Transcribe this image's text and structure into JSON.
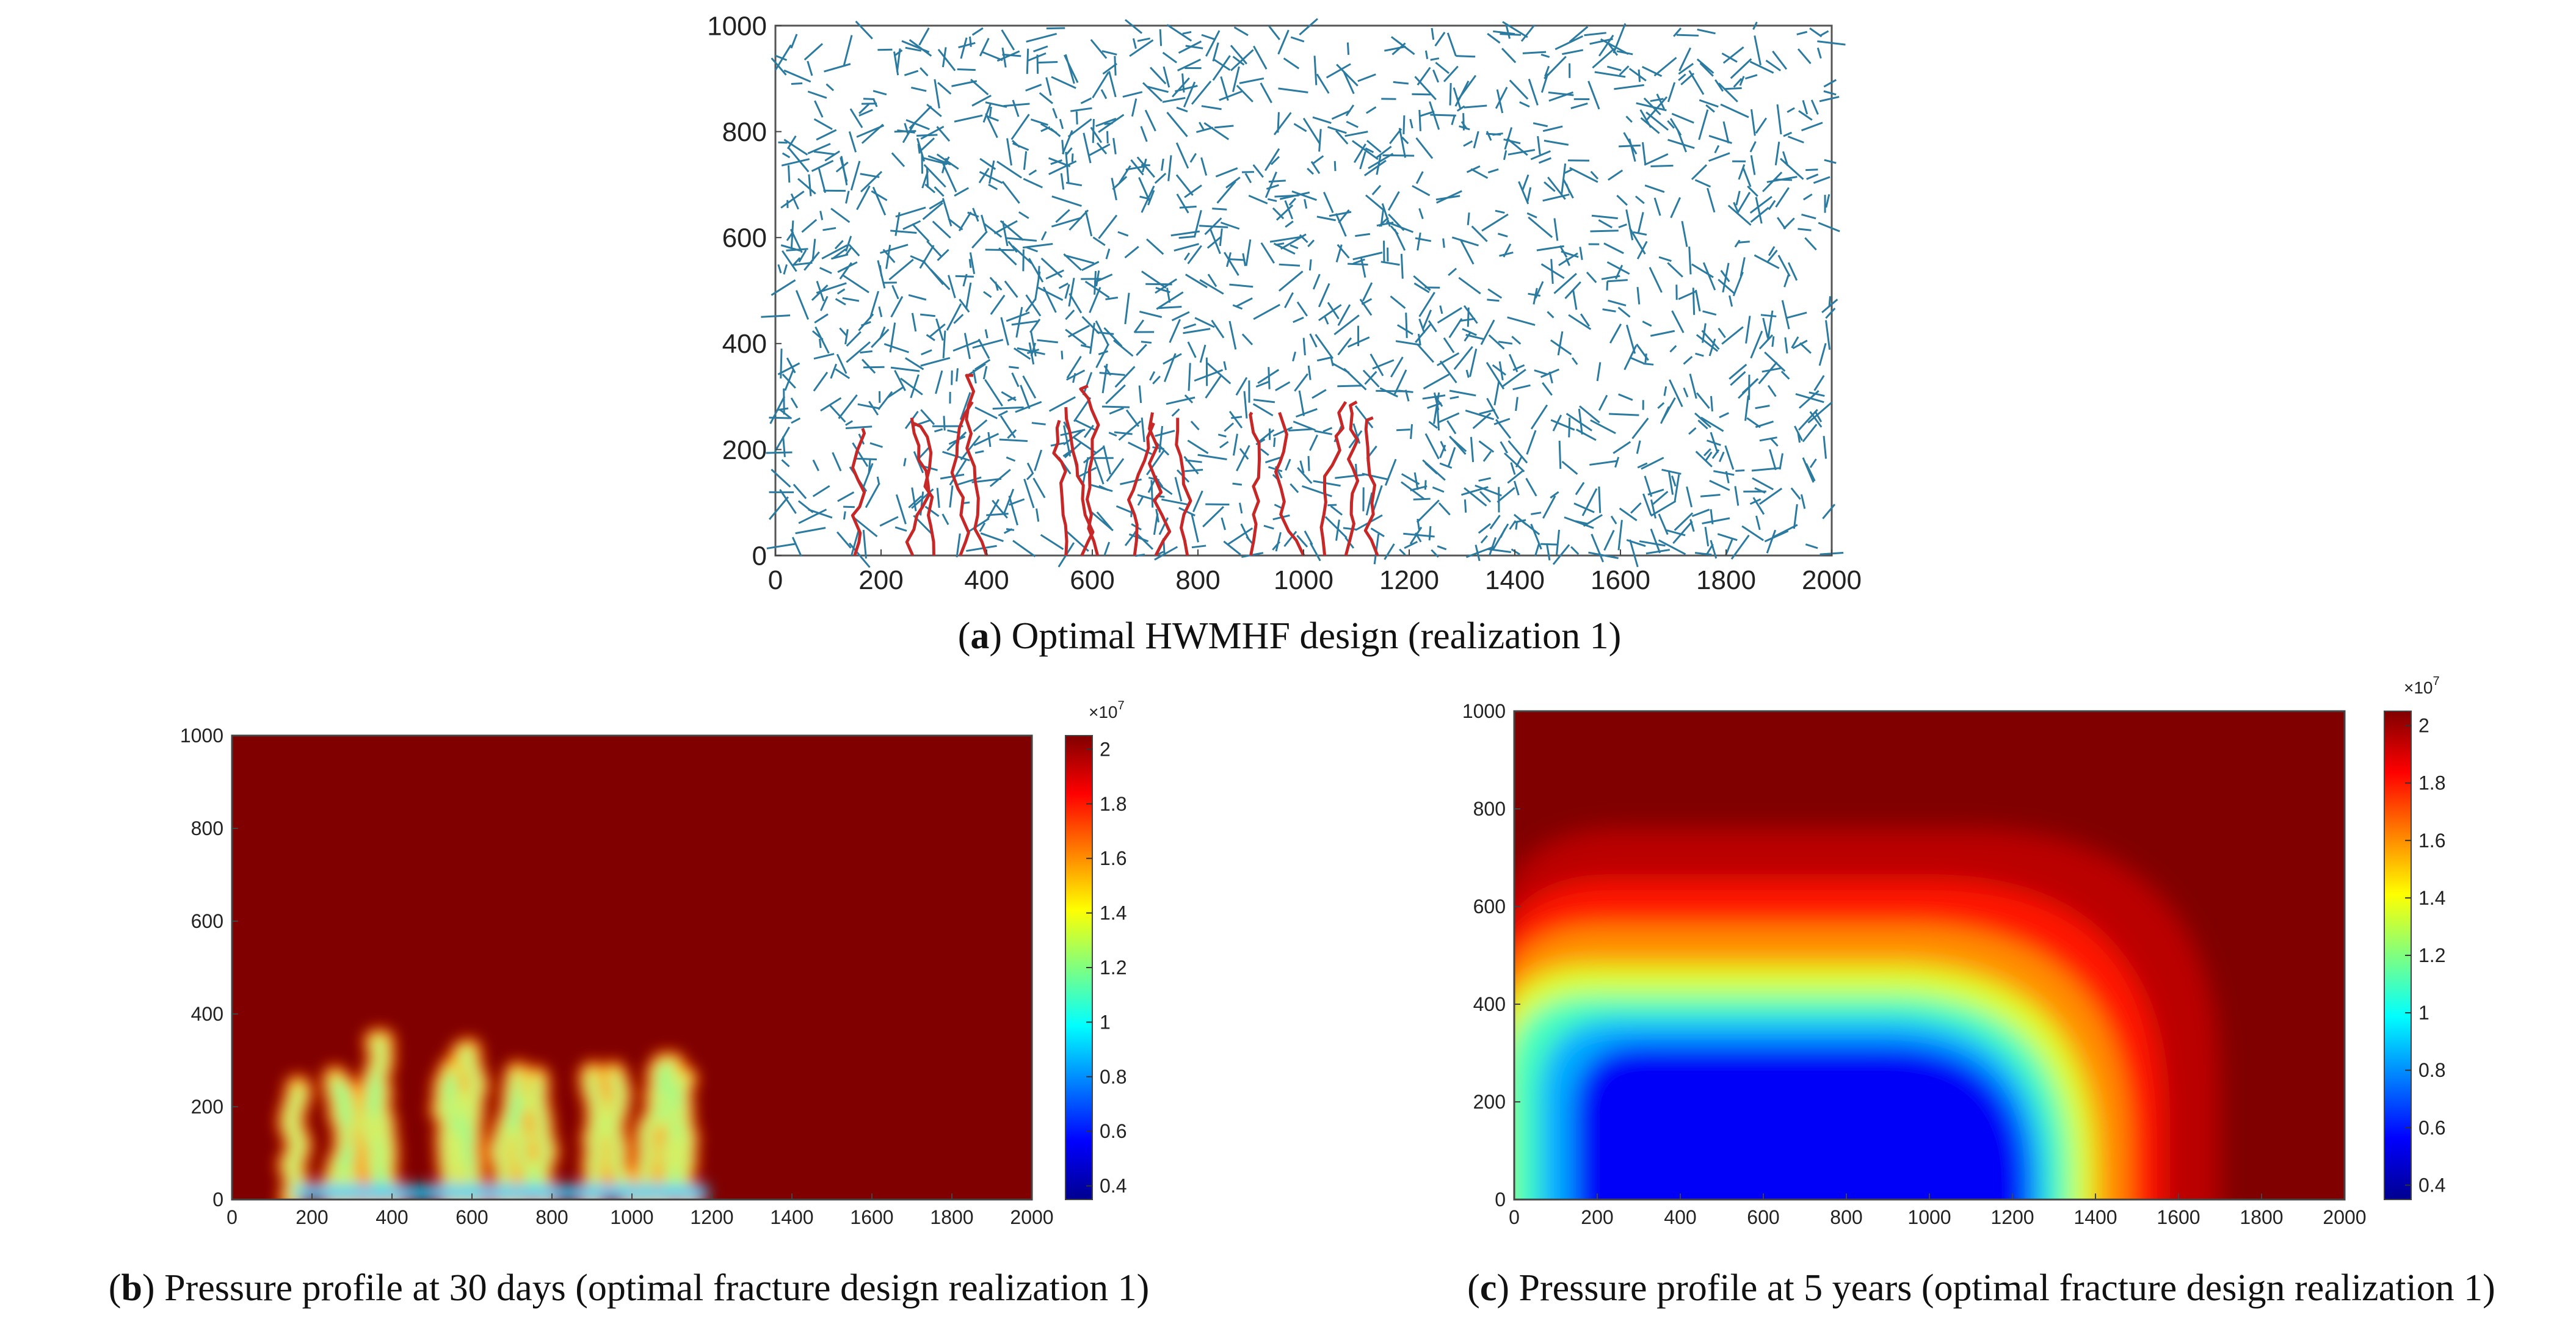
{
  "chart_data": [
    {
      "id": "a",
      "type": "scatter",
      "caption_letter": "a",
      "caption_text": ") Optimal HWMHF design (realization 1)",
      "xlim": [
        0,
        2000
      ],
      "ylim": [
        0,
        1000
      ],
      "x_ticks": [
        "0",
        "200",
        "400",
        "600",
        "800",
        "1000",
        "1200",
        "1400",
        "1600",
        "1800",
        "2000"
      ],
      "y_ticks": [
        "0",
        "200",
        "400",
        "600",
        "800",
        "1000"
      ],
      "series": [
        {
          "role": "natural-fractures",
          "color": "#2b7aa0",
          "count": 1600,
          "length_range": [
            15,
            60
          ]
        },
        {
          "role": "hydraulic-fractures",
          "color": "#c62828",
          "wells": [
            {
              "x": 150,
              "top": 240
            },
            {
              "x": 260,
              "top": 260
            },
            {
              "x": 300,
              "top": 250
            },
            {
              "x": 350,
              "top": 290
            },
            {
              "x": 400,
              "top": 340
            },
            {
              "x": 550,
              "top": 255
            },
            {
              "x": 580,
              "top": 280
            },
            {
              "x": 610,
              "top": 320
            },
            {
              "x": 680,
              "top": 250
            },
            {
              "x": 720,
              "top": 270
            },
            {
              "x": 780,
              "top": 260
            },
            {
              "x": 900,
              "top": 270
            },
            {
              "x": 1000,
              "top": 270
            },
            {
              "x": 1040,
              "top": 290
            },
            {
              "x": 1080,
              "top": 290
            },
            {
              "x": 1140,
              "top": 260
            }
          ]
        }
      ]
    },
    {
      "id": "b",
      "type": "heatmap",
      "caption_letter": "b",
      "caption_text": ") Pressure profile at 30 days (optimal fracture design realization 1)",
      "xlim": [
        0,
        2000
      ],
      "ylim": [
        0,
        1000
      ],
      "x_ticks": [
        "0",
        "200",
        "400",
        "600",
        "800",
        "1000",
        "1200",
        "1400",
        "1600",
        "1800",
        "2000"
      ],
      "y_ticks": [
        "0",
        "200",
        "400",
        "600",
        "800",
        "1000"
      ],
      "colorbar": {
        "exponent": "×10",
        "power": "7",
        "ticks": [
          "0.4",
          "0.6",
          "0.8",
          "1",
          "1.2",
          "1.4",
          "1.6",
          "1.8",
          "2"
        ],
        "range": [
          0.35,
          2.05
        ]
      },
      "background_value": 2.05,
      "well_depletion_value": 1.15,
      "wellbore": {
        "x_range": [
          160,
          1190
        ],
        "value": 0.9
      }
    },
    {
      "id": "c",
      "type": "heatmap",
      "caption_letter": "c",
      "caption_text": ") Pressure profile at 5 years (optimal fracture design realization 1)",
      "xlim": [
        0,
        2000
      ],
      "ylim": [
        0,
        1000
      ],
      "x_ticks": [
        "0",
        "200",
        "400",
        "600",
        "800",
        "1000",
        "1200",
        "1400",
        "1600",
        "1800",
        "2000"
      ],
      "y_ticks": [
        "0",
        "200",
        "400",
        "600",
        "800",
        "1000"
      ],
      "colorbar": {
        "exponent": "×10",
        "power": "7",
        "ticks": [
          "0.4",
          "0.6",
          "0.8",
          "1",
          "1.2",
          "1.4",
          "1.6",
          "1.8",
          "2"
        ],
        "range": [
          0.35,
          2.05
        ]
      },
      "background_value": 2.05,
      "contours": [
        {
          "value": 1.95,
          "x_left": -50,
          "x_right": 1700,
          "top": 760
        },
        {
          "value": 1.8,
          "x_left": -50,
          "x_right": 1560,
          "top": 650
        },
        {
          "value": 1.6,
          "x_left": -50,
          "x_right": 1480,
          "top": 560
        },
        {
          "value": 1.35,
          "x_left": -50,
          "x_right": 1400,
          "top": 480
        },
        {
          "value": 1.1,
          "x_left": -20,
          "x_right": 1340,
          "top": 420
        },
        {
          "value": 0.85,
          "x_left": 60,
          "x_right": 1280,
          "top": 370
        },
        {
          "value": 0.55,
          "x_left": 140,
          "x_right": 1240,
          "top": 320
        }
      ]
    }
  ]
}
